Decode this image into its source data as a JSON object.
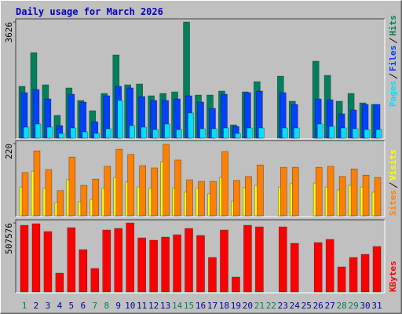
{
  "chart_data": [
    {
      "type": "bar",
      "title": "Daily usage for March 2026",
      "ylim": [
        0,
        3626
      ],
      "yticks": [
        3626
      ],
      "series": [
        {
          "name": "Hits",
          "color": "#00805c",
          "values": [
            1617,
            2670,
            1666,
            710,
            1568,
            1176,
            857,
            1396,
            2597,
            1666,
            1690,
            1323,
            1396,
            1445,
            3626,
            1347,
            1347,
            1470,
            416,
            1445,
            1764,
            0,
            1935,
            1151,
            0,
            2401,
            1960,
            1151,
            1396,
            1102,
            1053
          ]
        },
        {
          "name": "Files",
          "color": "#0040ff",
          "values": [
            1421,
            1519,
            1225,
            392,
            1372,
            1127,
            514,
            1323,
            1617,
            1568,
            1298,
            1176,
            1176,
            1225,
            1323,
            1127,
            931,
            1372,
            367,
            1421,
            1470,
            0,
            1421,
            1053,
            0,
            1225,
            1200,
            759,
            882,
            1053,
            1053
          ]
        },
        {
          "name": "Pages",
          "color": "#00e0ff",
          "values": [
            343,
            441,
            343,
            147,
            318,
            196,
            147,
            294,
            1176,
            392,
            343,
            269,
            441,
            269,
            784,
            294,
            294,
            318,
            147,
            318,
            318,
            0,
            318,
            318,
            0,
            441,
            367,
            318,
            294,
            269,
            269
          ]
        }
      ]
    },
    {
      "type": "bar",
      "ylim": [
        0,
        220
      ],
      "yticks": [
        220
      ],
      "series": [
        {
          "name": "Visits",
          "color": "#ffff00",
          "values": [
            88,
            136,
            84,
            41,
            110,
            43,
            50,
            84,
            117,
            103,
            88,
            84,
            165,
            84,
            72,
            84,
            67,
            117,
            45,
            86,
            93,
            0,
            88,
            98,
            0,
            100,
            88,
            79,
            93,
            88,
            72
          ]
        },
        {
          "name": "Sites",
          "color": "#ff8000",
          "values": [
            132,
            198,
            141,
            77,
            179,
            93,
            112,
            151,
            203,
            187,
            153,
            146,
            218,
            170,
            110,
            105,
            105,
            196,
            108,
            120,
            155,
            0,
            148,
            148,
            0,
            148,
            151,
            120,
            143,
            124,
            117
          ]
        }
      ]
    },
    {
      "type": "bar",
      "ylim": [
        0,
        507576
      ],
      "yticks": [
        507576
      ],
      "categories": [
        "1",
        "2",
        "3",
        "4",
        "5",
        "6",
        "7",
        "8",
        "9",
        "10",
        "11",
        "12",
        "13",
        "14",
        "15",
        "16",
        "17",
        "18",
        "19",
        "20",
        "21",
        "22",
        "23",
        "24",
        "25",
        "26",
        "27",
        "28",
        "29",
        "30",
        "31"
      ],
      "category_colors": [
        "#00805c",
        "#0000a0",
        "#0000a0",
        "#0000a0",
        "#0000a0",
        "#0000a0",
        "#00805c",
        "#00805c",
        "#0000a0",
        "#0000a0",
        "#0000a0",
        "#0000a0",
        "#0000a0",
        "#00805c",
        "#00805c",
        "#0000a0",
        "#0000a0",
        "#0000a0",
        "#0000a0",
        "#0000a0",
        "#00805c",
        "#00805c",
        "#0000a0",
        "#0000a0",
        "#0000a0",
        "#0000a0",
        "#0000a0",
        "#00805c",
        "#00805c",
        "#0000a0",
        "#0000a0"
      ],
      "series": [
        {
          "name": "KBytes",
          "color": "#ff0000",
          "values": [
            490272,
            501807,
            444129,
            138430,
            472968,
            311467,
            173037,
            455664,
            467199,
            507576,
            397985,
            380682,
            403753,
            421057,
            467199,
            415289,
            253788,
            455664,
            109590,
            490272,
            478735,
            0,
            478735,
            357610,
            0,
            363378,
            386448,
            184573,
            253788,
            276860,
            334534
          ]
        }
      ]
    }
  ]
}
